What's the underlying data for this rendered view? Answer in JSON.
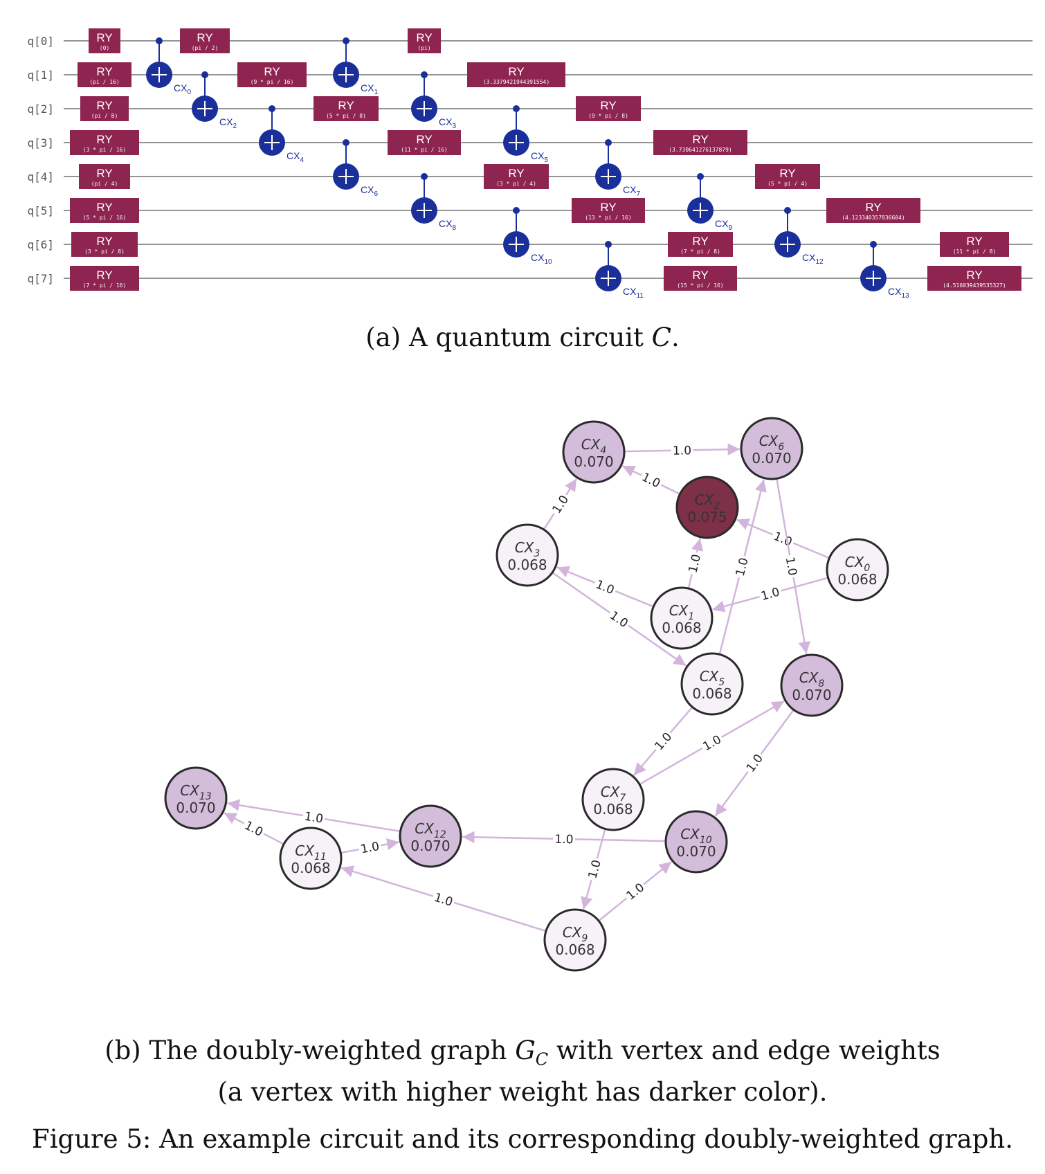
{
  "circuit": {
    "qubits": [
      "q[0]",
      "q[1]",
      "q[2]",
      "q[3]",
      "q[4]",
      "q[5]",
      "q[6]",
      "q[7]"
    ],
    "gate_label": "RY",
    "ry_gates": [
      {
        "q": 0,
        "param": "(0)"
      },
      {
        "q": 0,
        "param": "(pi / 2)"
      },
      {
        "q": 0,
        "param": "(pi)"
      },
      {
        "q": 1,
        "param": "(pi / 16)"
      },
      {
        "q": 1,
        "param": "(9 * pi / 16)"
      },
      {
        "q": 1,
        "param": "(3.3379421944391554)"
      },
      {
        "q": 2,
        "param": "(pi / 8)"
      },
      {
        "q": 2,
        "param": "(5 * pi / 8)"
      },
      {
        "q": 2,
        "param": "(9 * pi / 8)"
      },
      {
        "q": 3,
        "param": "(3 * pi / 16)"
      },
      {
        "q": 3,
        "param": "(11 * pi / 16)"
      },
      {
        "q": 3,
        "param": "(3.730641276137879)"
      },
      {
        "q": 4,
        "param": "(pi / 4)"
      },
      {
        "q": 4,
        "param": "(3 * pi / 4)"
      },
      {
        "q": 4,
        "param": "(5 * pi / 4)"
      },
      {
        "q": 5,
        "param": "(5 * pi / 16)"
      },
      {
        "q": 5,
        "param": "(13 * pi / 16)"
      },
      {
        "q": 5,
        "param": "(4.123340357836604)"
      },
      {
        "q": 6,
        "param": "(3 * pi / 8)"
      },
      {
        "q": 6,
        "param": "(7 * pi / 8)"
      },
      {
        "q": 6,
        "param": "(11 * pi / 8)"
      },
      {
        "q": 7,
        "param": "(7 * pi / 16)"
      },
      {
        "q": 7,
        "param": "(15 * pi / 16)"
      },
      {
        "q": 7,
        "param": "(4.516039439535327)"
      }
    ],
    "cx_gates": [
      {
        "name": "CX",
        "sub": "0",
        "control": 0,
        "target": 1
      },
      {
        "name": "CX",
        "sub": "1",
        "control": 0,
        "target": 1
      },
      {
        "name": "CX",
        "sub": "2",
        "control": 1,
        "target": 2
      },
      {
        "name": "CX",
        "sub": "3",
        "control": 1,
        "target": 2
      },
      {
        "name": "CX",
        "sub": "4",
        "control": 2,
        "target": 3
      },
      {
        "name": "CX",
        "sub": "5",
        "control": 2,
        "target": 3
      },
      {
        "name": "CX",
        "sub": "6",
        "control": 3,
        "target": 4
      },
      {
        "name": "CX",
        "sub": "7",
        "control": 3,
        "target": 4
      },
      {
        "name": "CX",
        "sub": "8",
        "control": 4,
        "target": 5
      },
      {
        "name": "CX",
        "sub": "9",
        "control": 4,
        "target": 5
      },
      {
        "name": "CX",
        "sub": "10",
        "control": 5,
        "target": 6
      },
      {
        "name": "CX",
        "sub": "11",
        "control": 6,
        "target": 7
      },
      {
        "name": "CX",
        "sub": "12",
        "control": 5,
        "target": 6
      },
      {
        "name": "CX",
        "sub": "13",
        "control": 6,
        "target": 7
      }
    ]
  },
  "graph": {
    "nodes": [
      {
        "id": "CX0",
        "name": "CX",
        "sub": "0",
        "weight": "0.068"
      },
      {
        "id": "CX1",
        "name": "CX",
        "sub": "1",
        "weight": "0.068"
      },
      {
        "id": "CX2",
        "name": "CX",
        "sub": "2",
        "weight": "0.075"
      },
      {
        "id": "CX3",
        "name": "CX",
        "sub": "3",
        "weight": "0.068"
      },
      {
        "id": "CX4",
        "name": "CX",
        "sub": "4",
        "weight": "0.070"
      },
      {
        "id": "CX5",
        "name": "CX",
        "sub": "5",
        "weight": "0.068"
      },
      {
        "id": "CX6",
        "name": "CX",
        "sub": "6",
        "weight": "0.070"
      },
      {
        "id": "CX7",
        "name": "CX",
        "sub": "7",
        "weight": "0.068"
      },
      {
        "id": "CX8",
        "name": "CX",
        "sub": "8",
        "weight": "0.070"
      },
      {
        "id": "CX9",
        "name": "CX",
        "sub": "9",
        "weight": "0.068"
      },
      {
        "id": "CX10",
        "name": "CX",
        "sub": "10",
        "weight": "0.070"
      },
      {
        "id": "CX11",
        "name": "CX",
        "sub": "11",
        "weight": "0.068"
      },
      {
        "id": "CX12",
        "name": "CX",
        "sub": "12",
        "weight": "0.070"
      },
      {
        "id": "CX13",
        "name": "CX",
        "sub": "13",
        "weight": "0.070"
      }
    ],
    "edges": [
      {
        "from": "CX0",
        "to": "CX1",
        "weight": "1.0"
      },
      {
        "from": "CX0",
        "to": "CX2",
        "weight": "1.0"
      },
      {
        "from": "CX1",
        "to": "CX2",
        "weight": "1.0"
      },
      {
        "from": "CX1",
        "to": "CX3",
        "weight": "1.0"
      },
      {
        "from": "CX2",
        "to": "CX4",
        "weight": "1.0"
      },
      {
        "from": "CX3",
        "to": "CX4",
        "weight": "1.0"
      },
      {
        "from": "CX3",
        "to": "CX5",
        "weight": "1.0"
      },
      {
        "from": "CX4",
        "to": "CX6",
        "weight": "1.0"
      },
      {
        "from": "CX5",
        "to": "CX6",
        "weight": "1.0"
      },
      {
        "from": "CX6",
        "to": "CX8",
        "weight": "1.0"
      },
      {
        "from": "CX5",
        "to": "CX7",
        "weight": "1.0"
      },
      {
        "from": "CX7",
        "to": "CX8",
        "weight": "1.0"
      },
      {
        "from": "CX8",
        "to": "CX10",
        "weight": "1.0"
      },
      {
        "from": "CX7",
        "to": "CX9",
        "weight": "1.0"
      },
      {
        "from": "CX9",
        "to": "CX10",
        "weight": "1.0"
      },
      {
        "from": "CX10",
        "to": "CX12",
        "weight": "1.0"
      },
      {
        "from": "CX9",
        "to": "CX11",
        "weight": "1.0"
      },
      {
        "from": "CX11",
        "to": "CX12",
        "weight": "1.0"
      },
      {
        "from": "CX11",
        "to": "CX13",
        "weight": "1.0"
      },
      {
        "from": "CX12",
        "to": "CX13",
        "weight": "1.0"
      }
    ],
    "colors": {
      "low": "#f6f2f8",
      "mid": "#d4bcdb",
      "high": "#7e3048",
      "edge": "#d2b4dc"
    }
  },
  "colors": {
    "ry_gate": "#8e2450",
    "cx_gate": "#1a2f9a",
    "wire": "#555555"
  },
  "captions": {
    "a": {
      "prefix": "(a) A quantum circuit ",
      "var": "C",
      "suffix": "."
    },
    "b": {
      "line1_prefix": "(b) The doubly-weighted graph ",
      "var": "G",
      "var_sub": "C",
      "line1_suffix": " with vertex and edge weights",
      "line2": "(a vertex with higher weight has darker color)."
    },
    "figure": "Figure 5: An example circuit and its corresponding doubly-weighted graph."
  }
}
